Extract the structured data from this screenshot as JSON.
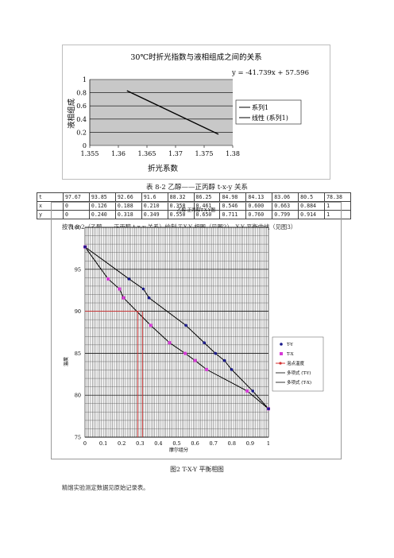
{
  "chart1": {
    "title": "30℃时折光指数与液相组成之间的关系",
    "equation": "y = -41.739x + 57.596",
    "ylabel": "液相组成",
    "xlabel": "折光系数",
    "xticks": [
      "1.355",
      "1.36",
      "1.365",
      "1.37",
      "1.375",
      "1.38"
    ],
    "yticks": [
      "0",
      "0.2",
      "0.4",
      "0.6",
      "0.8",
      "1"
    ],
    "legend": [
      "系列1",
      "线性 (系列1)"
    ]
  },
  "chart_data": [
    {
      "type": "scatter",
      "title": "30℃时折光指数与液相组成之间的关系",
      "xlabel": "折光系数",
      "ylabel": "液相组成",
      "xlim": [
        1.355,
        1.38
      ],
      "ylim": [
        0,
        1
      ],
      "grid": true,
      "legend_position": "right",
      "series": [
        {
          "name": "系列1",
          "x": [
            1.3615,
            1.3775
          ],
          "y": [
            0.83,
            0.17
          ]
        },
        {
          "name": "线性 (系列1)",
          "trendline": "y = -41.739x + 57.596"
        }
      ]
    },
    {
      "type": "line",
      "title": "乙醇-正丙醇T-X-Y图",
      "xlabel": "摩尔组分",
      "ylabel": "温度",
      "xlim": [
        0,
        1
      ],
      "ylim": [
        75,
        100
      ],
      "grid": true,
      "legend_position": "right",
      "series": [
        {
          "name": "T-Y",
          "x": [
            0,
            0.24,
            0.318,
            0.349,
            0.55,
            0.65,
            0.711,
            0.76,
            0.799,
            0.914,
            1
          ],
          "y": [
            97.67,
            93.85,
            92.66,
            91.6,
            88.32,
            86.25,
            84.98,
            84.13,
            83.06,
            80.5,
            78.38
          ]
        },
        {
          "name": "T-X",
          "x": [
            0,
            0.126,
            0.188,
            0.21,
            0.358,
            0.461,
            0.546,
            0.6,
            0.663,
            0.884,
            1
          ],
          "y": [
            97.67,
            93.85,
            92.66,
            91.6,
            88.32,
            86.25,
            84.98,
            84.13,
            83.06,
            80.5,
            78.38
          ]
        },
        {
          "name": "泡点温度"
        },
        {
          "name": "多项式 (T-Y)"
        },
        {
          "name": "多项式 (T-X)"
        }
      ]
    }
  ],
  "table": {
    "title": "表 8-2   乙醇——正丙醇    t-x-y 关系",
    "rows": [
      [
        "t",
        "97.67",
        "93.85",
        "92.66",
        "91.6",
        "88.32",
        "86.25",
        "84.98",
        "84.13",
        "83.06",
        "80.5",
        "78.38"
      ],
      [
        "x",
        "0",
        "0.126",
        "0.188",
        "0.210",
        "0.358",
        "0.461",
        "0.546",
        "0.600",
        "0.663",
        "0.884",
        "1"
      ],
      [
        "y",
        "0",
        "0.240",
        "0.318",
        "0.349",
        "0.550",
        "0.650",
        "0.711",
        "0.760",
        "0.799",
        "0.914",
        "1"
      ]
    ]
  },
  "paragraph1": "按表 8-2（乙醇——正丙醇 t-x-y 关系）绘制 T-X-Y 相图（见图2）、X-Y 平衡曲线（见图3）",
  "chart2": {
    "title": "乙醇-正丙醇T-X-Y图",
    "ylabel": "温度",
    "xlabel": "摩尔组分",
    "xticks": [
      "0",
      "0.1",
      "0.2",
      "0.3",
      "0.4",
      "0.5",
      "0.6",
      "0.7",
      "0.8",
      "0.9",
      "1"
    ],
    "yticks": [
      "75",
      "80",
      "85",
      "90",
      "95",
      "100"
    ],
    "legend": [
      "T-Y",
      "T-X",
      "泡点温度",
      "多项式 (T-Y)",
      "多项式 (T-X)"
    ]
  },
  "figure2_caption": "图2   T-X-Y 平衡相图",
  "paragraph2": "精馏实验测定数据见原始记录表。",
  "colors": {
    "tx": "#d63ad6",
    "ty": "#1a1a8c",
    "bubble": "#d43030",
    "plot_bg": "#c8c8c8"
  }
}
